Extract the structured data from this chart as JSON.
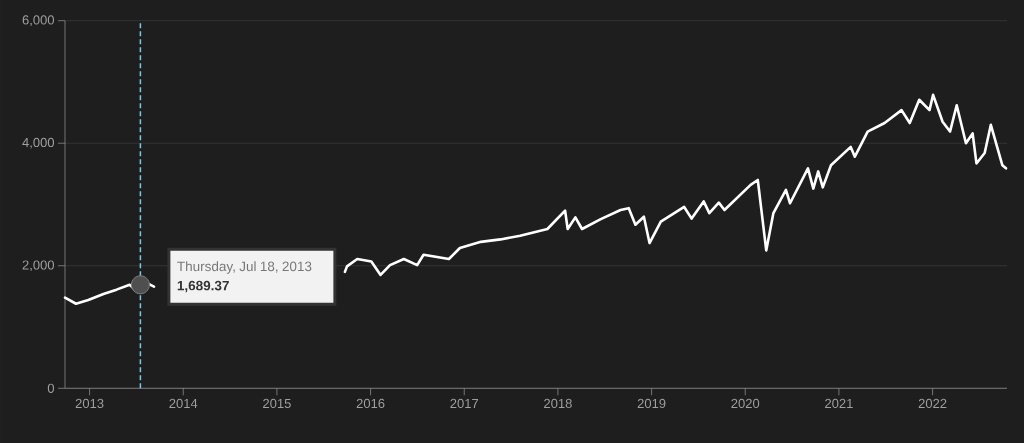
{
  "chart_data": {
    "type": "line",
    "x": [
      "2012-09-27",
      "2012-11-09",
      "2012-12-27",
      "2013-02-24",
      "2013-04-16",
      "2013-06-06",
      "2013-06-28",
      "2013-07-18",
      "2013-08-11",
      "2013-09-09",
      "2014-09-01",
      "2015-09-23",
      "2015-10-01",
      "2015-11-10",
      "2016-01-04",
      "2016-02-09",
      "2016-03-17",
      "2016-05-10",
      "2016-07-01",
      "2016-07-26",
      "2016-11-02",
      "2016-12-15",
      "2017-03-07",
      "2017-05-22",
      "2017-08-07",
      "2017-11-21",
      "2018-01-29",
      "2018-02-08",
      "2018-03-10",
      "2018-04-05",
      "2018-06-17",
      "2018-09-02",
      "2018-10-04",
      "2018-10-30",
      "2018-12-02",
      "2018-12-24",
      "2019-02-06",
      "2019-05-08",
      "2019-06-06",
      "2019-07-23",
      "2019-08-14",
      "2019-09-20",
      "2019-10-12",
      "2020-01-22",
      "2020-02-19",
      "2020-03-23",
      "2020-04-20",
      "2020-06-08",
      "2020-06-24",
      "2020-09-02",
      "2020-09-23",
      "2020-10-12",
      "2020-10-30",
      "2020-12-01",
      "2021-02-16",
      "2021-03-04",
      "2021-04-23",
      "2021-06-28",
      "2021-09-02",
      "2021-10-04",
      "2021-11-10",
      "2021-12-20",
      "2022-01-03",
      "2022-02-09",
      "2022-03-10",
      "2022-04-05",
      "2022-05-11",
      "2022-06-06",
      "2022-06-21",
      "2022-07-23",
      "2022-08-16",
      "2022-09-30",
      "2022-10-14"
    ],
    "series": [
      {
        "color": "#ffffff",
        "values": [
          1480,
          1380,
          1440,
          1540,
          1610,
          1690,
          1610,
          1689.37,
          1720,
          1660,
          null,
          1900,
          1990,
          2110,
          2070,
          1850,
          2010,
          2110,
          2010,
          2180,
          2110,
          2290,
          2390,
          2430,
          2490,
          2600,
          2900,
          2600,
          2790,
          2600,
          2760,
          2910,
          2940,
          2670,
          2800,
          2370,
          2720,
          2960,
          2770,
          3050,
          2860,
          3030,
          2910,
          3320,
          3400,
          2250,
          2860,
          3240,
          3020,
          3590,
          3260,
          3540,
          3280,
          3640,
          3940,
          3780,
          4190,
          4330,
          4540,
          4330,
          4710,
          4540,
          4790,
          4350,
          4190,
          4620,
          4000,
          4160,
          3670,
          3840,
          4300,
          3640,
          3590
        ]
      }
    ],
    "xlim": [
      "2012-09-27",
      "2022-10-18"
    ],
    "xticks": [
      "2013",
      "2014",
      "2015",
      "2016",
      "2017",
      "2018",
      "2019",
      "2020",
      "2021",
      "2022"
    ],
    "ylim": [
      0,
      6000
    ],
    "yticks": [
      0,
      {
        "value": 2000,
        "label": "2,000"
      },
      {
        "value": 4000,
        "label": "4,000"
      },
      {
        "value": 6000,
        "label": "6,000"
      }
    ],
    "grid": "y",
    "line_style": "solid",
    "ref_lines": [
      {
        "axis": "x",
        "value": "2013-07-18",
        "color": "#7ec8e3",
        "line_style": "dashed"
      }
    ],
    "annotations": [
      {
        "text": "Thursday, Jul 18, 2013",
        "x": "2013-07-18",
        "y": 1689.37
      },
      {
        "text": "1,689.37",
        "x": "2013-07-18",
        "y": 1689.37
      }
    ]
  }
}
